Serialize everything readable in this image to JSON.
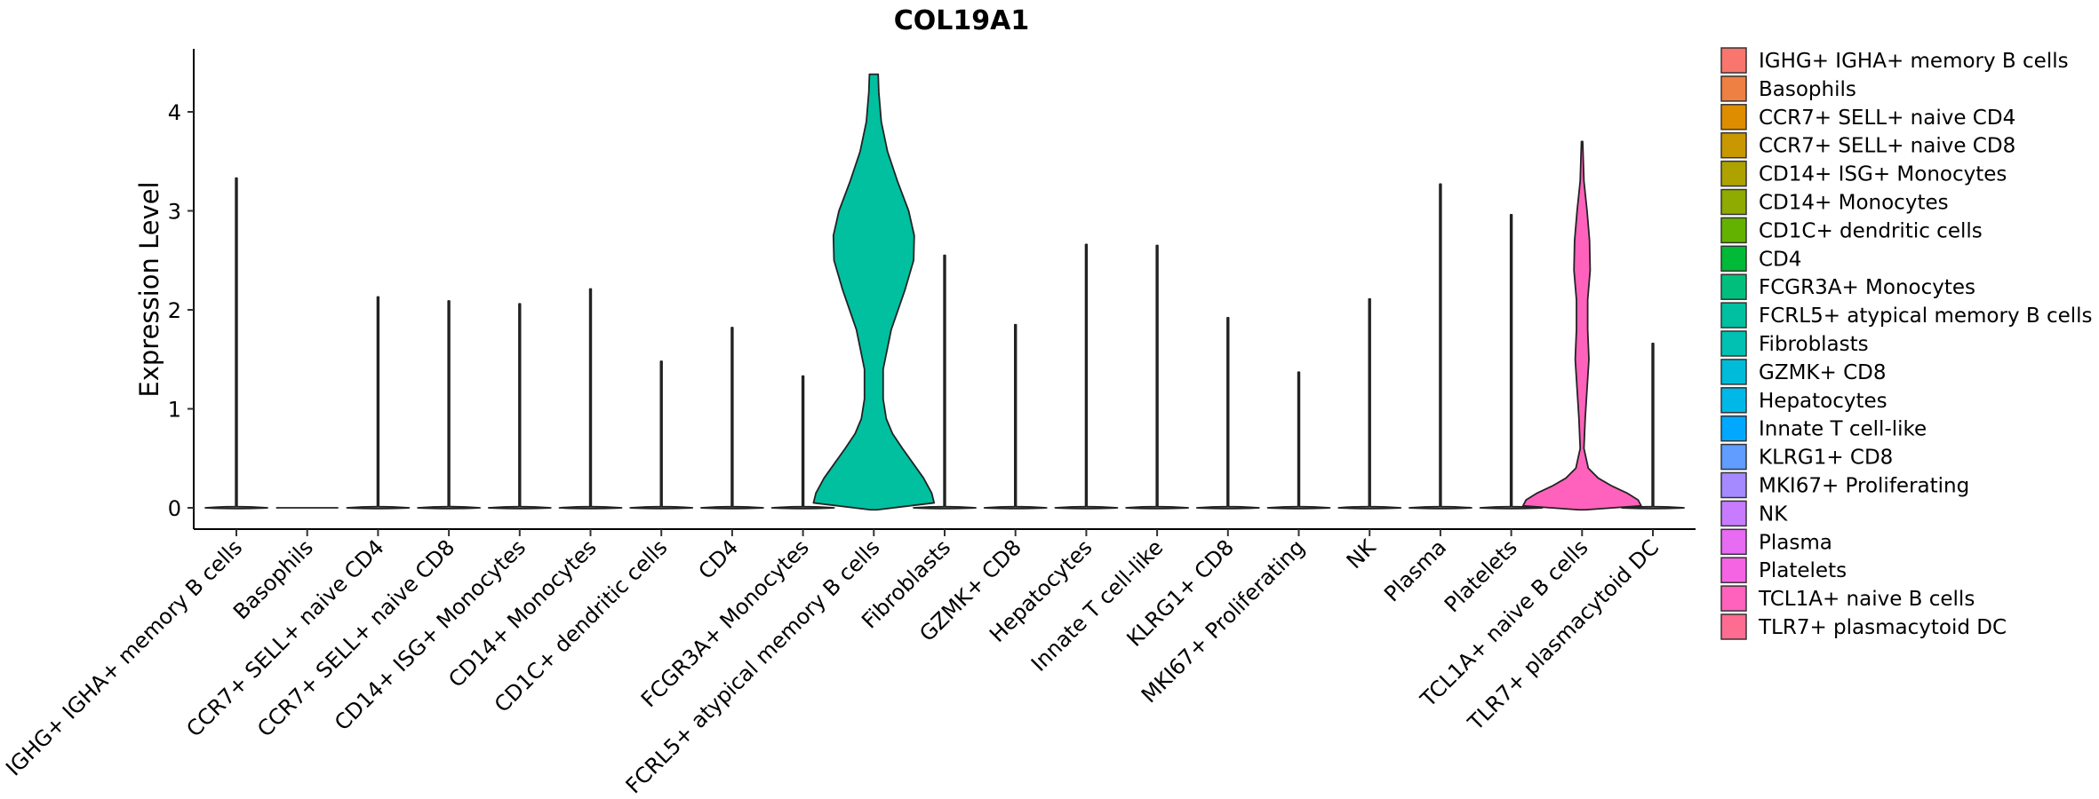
{
  "chart_data": {
    "type": "violin",
    "title": "COL19A1",
    "xlabel": "",
    "ylabel": "Expression Level",
    "ylim": [
      -0.2,
      4.6
    ],
    "yticks": [
      0,
      1,
      2,
      3,
      4
    ],
    "legend_position": "right",
    "categories": [
      {
        "name": "IGHG+ IGHA+ memory B cells",
        "legend_label": " IGHG+ IGHA+ memory B cells",
        "color": "#F8766D",
        "max": 3.33,
        "profile": "spike"
      },
      {
        "name": "Basophils",
        "legend_label": "Basophils",
        "color": "#EE8043",
        "max": 0.0,
        "profile": "flat"
      },
      {
        "name": "CCR7+ SELL+ naive CD4",
        "legend_label": "CCR7+ SELL+ naive CD4",
        "color": "#DE8C00",
        "max": 2.13,
        "profile": "spike"
      },
      {
        "name": "CCR7+ SELL+ naive CD8",
        "legend_label": "CCR7+ SELL+ naive CD8",
        "color": "#C99800",
        "max": 2.09,
        "profile": "spike"
      },
      {
        "name": "CD14+ ISG+ Monocytes",
        "legend_label": "CD14+ ISG+ Monocytes",
        "color": "#AEA200",
        "max": 2.06,
        "profile": "spike"
      },
      {
        "name": "CD14+ Monocytes",
        "legend_label": "CD14+ Monocytes",
        "color": "#8FAA00",
        "max": 2.21,
        "profile": "spike"
      },
      {
        "name": "CD1C+ dendritic cells",
        "legend_label": "CD1C+ dendritic cells",
        "color": "#64B200",
        "max": 1.48,
        "profile": "spike"
      },
      {
        "name": "CD4",
        "legend_label": "CD4",
        "color": "#00BA38",
        "max": 1.82,
        "profile": "spike"
      },
      {
        "name": "FCGR3A+ Monocytes",
        "legend_label": "FCGR3A+ Monocytes",
        "color": "#00BF7D",
        "max": 1.33,
        "profile": "spike"
      },
      {
        "name": "FCRL5+ atypical memory B cells",
        "legend_label": "FCRL5+ atypical memory B cells",
        "color": "#00C0A0",
        "max": 4.38,
        "profile": "bimodal"
      },
      {
        "name": "Fibroblasts",
        "legend_label": "Fibroblasts",
        "color": "#00C1B2",
        "max": 2.55,
        "profile": "spike"
      },
      {
        "name": "GZMK+ CD8",
        "legend_label": "GZMK+ CD8",
        "color": "#00BCD8",
        "max": 1.85,
        "profile": "spike"
      },
      {
        "name": "Hepatocytes",
        "legend_label": "Hepatocytes",
        "color": "#00B8E7",
        "max": 2.66,
        "profile": "spike"
      },
      {
        "name": "Innate T cell-like",
        "legend_label": "Innate T cell-like",
        "color": "#00A9FF",
        "max": 2.65,
        "profile": "spike"
      },
      {
        "name": "KLRG1+ CD8",
        "legend_label": "KLRG1+ CD8",
        "color": "#619CFF",
        "max": 1.92,
        "profile": "spike"
      },
      {
        "name": "MKI67+ Proliferating",
        "legend_label": "MKI67+ Proliferating",
        "color": "#A58AFF",
        "max": 1.37,
        "profile": "spike"
      },
      {
        "name": "NK",
        "legend_label": "NK",
        "color": "#C77CFF",
        "max": 2.11,
        "profile": "spike"
      },
      {
        "name": "Plasma",
        "legend_label": "Plasma",
        "color": "#E76BF3",
        "max": 3.27,
        "profile": "spike"
      },
      {
        "name": "Platelets",
        "legend_label": "Platelets",
        "color": "#F564E3",
        "max": 2.96,
        "profile": "spike"
      },
      {
        "name": "TCL1A+ naive B cells",
        "legend_label": "TCL1A+ naive B cells",
        "color": "#FF62BC",
        "max": 3.7,
        "profile": "tcl1a"
      },
      {
        "name": "TLR7+ plasmacytoid DC",
        "legend_label": "TLR7+ plasmacytoid DC",
        "color": "#FF6C91",
        "max": 1.66,
        "profile": "spike"
      }
    ],
    "violin_shapes": {
      "bimodal": [
        [
          -0.02,
          0.05
        ],
        [
          0.05,
          0.97
        ],
        [
          0.15,
          0.93
        ],
        [
          0.3,
          0.8
        ],
        [
          0.45,
          0.63
        ],
        [
          0.6,
          0.46
        ],
        [
          0.75,
          0.3
        ],
        [
          0.9,
          0.2
        ],
        [
          1.1,
          0.15
        ],
        [
          1.4,
          0.15
        ],
        [
          1.8,
          0.28
        ],
        [
          2.2,
          0.5
        ],
        [
          2.5,
          0.64
        ],
        [
          2.75,
          0.65
        ],
        [
          3.0,
          0.56
        ],
        [
          3.3,
          0.38
        ],
        [
          3.6,
          0.22
        ],
        [
          3.9,
          0.12
        ],
        [
          4.2,
          0.08
        ],
        [
          4.38,
          0.07
        ]
      ],
      "tcl1a": [
        [
          -0.02,
          0.05
        ],
        [
          0.02,
          0.95
        ],
        [
          0.08,
          0.9
        ],
        [
          0.15,
          0.72
        ],
        [
          0.22,
          0.48
        ],
        [
          0.3,
          0.26
        ],
        [
          0.4,
          0.1
        ],
        [
          0.6,
          0.03
        ],
        [
          0.9,
          0.05
        ],
        [
          1.2,
          0.08
        ],
        [
          1.5,
          0.11
        ],
        [
          1.8,
          0.09
        ],
        [
          2.1,
          0.09
        ],
        [
          2.4,
          0.13
        ],
        [
          2.7,
          0.12
        ],
        [
          3.0,
          0.08
        ],
        [
          3.3,
          0.03
        ],
        [
          3.5,
          0.02
        ],
        [
          3.7,
          0.01
        ]
      ]
    }
  }
}
